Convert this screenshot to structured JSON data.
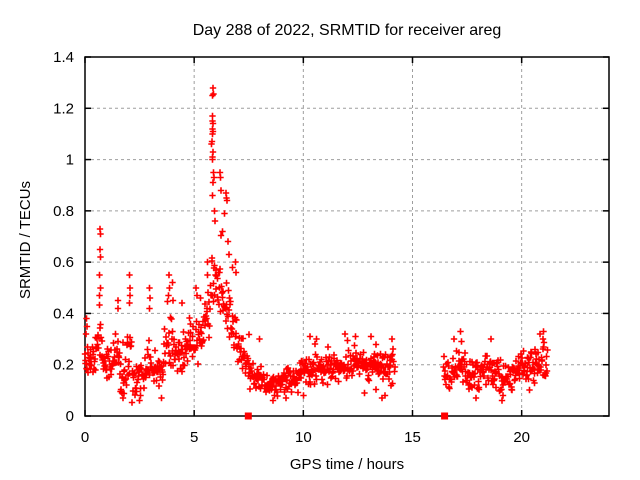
{
  "chart_data": {
    "type": "scatter",
    "title": "Day 288 of 2022, SRMTID for receiver areg",
    "xlabel": "GPS time / hours",
    "ylabel": "SRMTID / TECUs",
    "xlim": [
      0,
      24
    ],
    "ylim": [
      0,
      1.4
    ],
    "xticks": [
      0,
      5,
      10,
      15,
      20
    ],
    "xtick_labels": [
      "0",
      "5",
      "10",
      "15",
      "20"
    ],
    "yticks": [
      0,
      0.2,
      0.4,
      0.6,
      0.8,
      1.0,
      1.2,
      1.4
    ],
    "ytick_labels": [
      "0",
      "0.2",
      "0.4",
      "0.6",
      "0.8",
      "1",
      "1.2",
      "1.4"
    ],
    "grid": true,
    "legend": "none",
    "marker": "plus",
    "marker_color": "#ff0000",
    "grid_color": "#9e9e9e",
    "axis_color": "#000000",
    "background_color": "#ffffff",
    "seed": 20221015,
    "cadence_hours": 0.02,
    "peak_point": {
      "x": 5.86,
      "y": 1.28
    },
    "data_gaps_hours": [
      [
        14.2,
        16.42
      ],
      [
        21.2,
        24.0
      ]
    ],
    "square_markers": [
      {
        "x": 7.48,
        "y": 0
      },
      {
        "x": 16.47,
        "y": 0
      }
    ],
    "bands": [
      [
        0.0,
        0.45,
        0.21,
        0.22,
        0.08
      ],
      [
        0.45,
        0.62,
        0.26,
        0.28,
        0.1
      ],
      [
        0.62,
        0.82,
        0.28,
        0.26,
        0.12
      ],
      [
        0.82,
        1.3,
        0.21,
        0.2,
        0.07
      ],
      [
        1.3,
        1.6,
        0.23,
        0.24,
        0.09
      ],
      [
        1.6,
        1.92,
        0.16,
        0.15,
        0.08
      ],
      [
        1.92,
        2.15,
        0.24,
        0.25,
        0.11
      ],
      [
        2.15,
        2.75,
        0.14,
        0.14,
        0.07
      ],
      [
        2.75,
        3.05,
        0.21,
        0.22,
        0.1
      ],
      [
        3.05,
        3.6,
        0.18,
        0.16,
        0.08
      ],
      [
        3.6,
        4.1,
        0.27,
        0.3,
        0.12
      ],
      [
        4.1,
        4.75,
        0.24,
        0.24,
        0.1
      ],
      [
        4.75,
        5.4,
        0.28,
        0.31,
        0.11
      ],
      [
        5.4,
        5.75,
        0.34,
        0.42,
        0.12
      ],
      [
        5.75,
        6.05,
        0.52,
        0.58,
        0.16
      ],
      [
        6.05,
        6.35,
        0.52,
        0.47,
        0.14
      ],
      [
        6.35,
        6.65,
        0.44,
        0.4,
        0.12
      ],
      [
        6.65,
        7.0,
        0.36,
        0.31,
        0.1
      ],
      [
        7.0,
        7.3,
        0.28,
        0.24,
        0.08
      ],
      [
        7.3,
        7.55,
        0.23,
        0.19,
        0.06
      ],
      [
        7.55,
        8.2,
        0.16,
        0.14,
        0.06
      ],
      [
        8.2,
        9.0,
        0.12,
        0.12,
        0.05
      ],
      [
        9.0,
        9.8,
        0.13,
        0.14,
        0.06
      ],
      [
        9.8,
        10.7,
        0.17,
        0.18,
        0.07
      ],
      [
        10.7,
        11.6,
        0.18,
        0.19,
        0.07
      ],
      [
        11.6,
        12.6,
        0.2,
        0.2,
        0.07
      ],
      [
        12.6,
        13.4,
        0.2,
        0.2,
        0.07
      ],
      [
        13.4,
        14.2,
        0.19,
        0.18,
        0.08
      ],
      [
        16.42,
        16.8,
        0.16,
        0.16,
        0.06
      ],
      [
        16.8,
        17.4,
        0.19,
        0.19,
        0.08
      ],
      [
        17.4,
        18.1,
        0.15,
        0.15,
        0.07
      ],
      [
        18.1,
        19.0,
        0.18,
        0.18,
        0.07
      ],
      [
        19.0,
        19.6,
        0.15,
        0.15,
        0.08
      ],
      [
        19.6,
        20.4,
        0.18,
        0.18,
        0.07
      ],
      [
        20.4,
        21.2,
        0.2,
        0.21,
        0.08
      ]
    ],
    "feature_points": [
      [
        5.86,
        1.28
      ],
      [
        5.88,
        1.255
      ],
      [
        5.85,
        1.25
      ],
      [
        5.84,
        1.17
      ],
      [
        5.83,
        1.15
      ],
      [
        5.86,
        1.14
      ],
      [
        5.85,
        1.12
      ],
      [
        5.87,
        1.11
      ],
      [
        5.84,
        1.1
      ],
      [
        5.82,
        1.07
      ],
      [
        5.8,
        1.06
      ],
      [
        5.86,
        1.03
      ],
      [
        5.85,
        1.01
      ],
      [
        5.83,
        1.0
      ],
      [
        5.88,
        0.95
      ],
      [
        5.9,
        0.93
      ],
      [
        5.87,
        0.91
      ],
      [
        5.84,
        0.86
      ],
      [
        5.92,
        0.8
      ],
      [
        5.95,
        0.76
      ],
      [
        6.18,
        0.95
      ],
      [
        6.2,
        0.93
      ],
      [
        6.22,
        0.88
      ],
      [
        6.45,
        0.87
      ],
      [
        6.48,
        0.85
      ],
      [
        6.5,
        0.84
      ],
      [
        6.4,
        0.79
      ],
      [
        6.3,
        0.72
      ],
      [
        6.55,
        0.68
      ],
      [
        6.6,
        0.63
      ],
      [
        6.75,
        0.58
      ],
      [
        6.9,
        0.6
      ],
      [
        6.92,
        0.56
      ],
      [
        0.68,
        0.73
      ],
      [
        0.7,
        0.71
      ],
      [
        0.69,
        0.65
      ],
      [
        0.71,
        0.62
      ],
      [
        0.67,
        0.55
      ],
      [
        0.72,
        0.5
      ],
      [
        0.66,
        0.47
      ],
      [
        0.08,
        0.38
      ],
      [
        0.1,
        0.35
      ],
      [
        0.05,
        0.32
      ],
      [
        1.5,
        0.45
      ],
      [
        1.52,
        0.42
      ],
      [
        2.03,
        0.55
      ],
      [
        2.05,
        0.5
      ],
      [
        2.06,
        0.47
      ],
      [
        2.04,
        0.44
      ],
      [
        2.95,
        0.5
      ],
      [
        2.97,
        0.46
      ],
      [
        2.96,
        0.42
      ],
      [
        3.85,
        0.55
      ],
      [
        3.87,
        0.5
      ],
      [
        3.83,
        0.47
      ],
      [
        4.0,
        0.52
      ],
      [
        4.02,
        0.45
      ],
      [
        4.45,
        0.44
      ],
      [
        5.08,
        0.5
      ],
      [
        5.12,
        0.47
      ],
      [
        5.3,
        0.46
      ],
      [
        5.6,
        0.6
      ],
      [
        5.62,
        0.55
      ],
      [
        8.0,
        0.3
      ],
      [
        10.3,
        0.31
      ],
      [
        10.6,
        0.3
      ],
      [
        11.9,
        0.32
      ],
      [
        12.4,
        0.31
      ],
      [
        13.1,
        0.31
      ],
      [
        14.05,
        0.3
      ],
      [
        17.2,
        0.33
      ],
      [
        18.6,
        0.3
      ],
      [
        21.0,
        0.33
      ],
      [
        20.98,
        0.3
      ],
      [
        1.75,
        0.07
      ],
      [
        2.5,
        0.06
      ],
      [
        2.55,
        0.08
      ],
      [
        3.5,
        0.07
      ],
      [
        8.6,
        0.06
      ],
      [
        9.2,
        0.07
      ],
      [
        10.0,
        0.08
      ],
      [
        12.8,
        0.09
      ],
      [
        13.6,
        0.07
      ],
      [
        13.75,
        0.08
      ],
      [
        17.9,
        0.07
      ],
      [
        19.1,
        0.06
      ],
      [
        19.15,
        0.08
      ]
    ]
  }
}
